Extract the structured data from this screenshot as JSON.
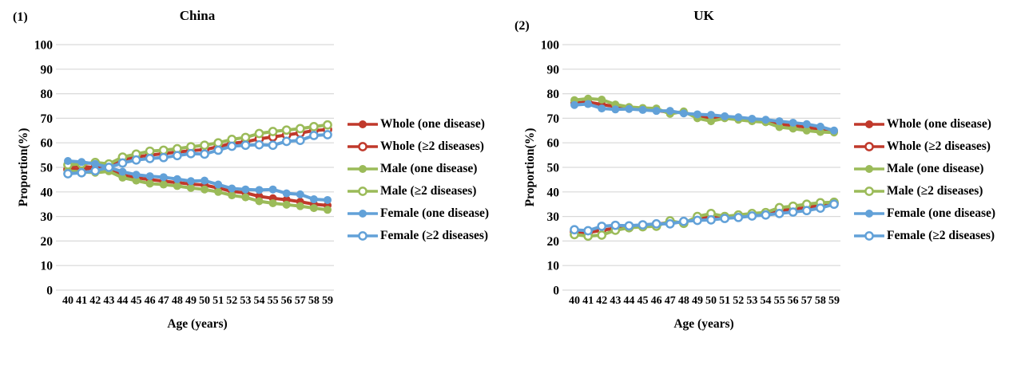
{
  "page": {
    "background": "#ffffff",
    "grid_color": "#d9d9d9",
    "text_color": "#000000"
  },
  "panels": [
    {
      "number": "(1)",
      "title": "China",
      "y_axis_title": "Proportion(%)",
      "x_axis_title": "Age (years)"
    },
    {
      "number": "(2)",
      "title": "UK",
      "y_axis_title": "Proportion(%)",
      "x_axis_title": "Age (years)"
    }
  ],
  "legend": {
    "entries": [
      {
        "label": "Whole (one disease)",
        "color": "#C0392B",
        "marker": "filled"
      },
      {
        "label": "Whole (≥2 diseases)",
        "color": "#C0392B",
        "marker": "open"
      },
      {
        "label": "Male (one disease)",
        "color": "#9BBB59",
        "marker": "filled"
      },
      {
        "label": "Male (≥2 diseases)",
        "color": "#9BBB59",
        "marker": "open"
      },
      {
        "label": "Female (one disease)",
        "color": "#62A1D8",
        "marker": "filled"
      },
      {
        "label": "Female (≥2 diseases)",
        "color": "#62A1D8",
        "marker": "open"
      }
    ]
  },
  "chart_data": [
    {
      "type": "line",
      "panel_label": "(1)",
      "title": "China",
      "xlabel": "Age (years)",
      "ylabel": "Proportion(%)",
      "x": [
        40,
        41,
        42,
        43,
        44,
        45,
        46,
        47,
        48,
        49,
        50,
        51,
        52,
        53,
        54,
        55,
        56,
        57,
        58,
        59
      ],
      "ylim": [
        0,
        100
      ],
      "ytick_step": 10,
      "grid": true,
      "legend_position": "right",
      "series": [
        {
          "name": "Whole (one disease)",
          "color": "#C0392B",
          "marker": "filled",
          "values": [
            50.3,
            50.4,
            49.9,
            49.2,
            46.8,
            45.8,
            45.0,
            44.4,
            43.8,
            43.2,
            42.8,
            41.6,
            40.2,
            39.6,
            38.2,
            37.4,
            36.8,
            36.0,
            35.0,
            34.5
          ]
        },
        {
          "name": "Whole (≥2 diseases)",
          "color": "#C0392B",
          "marker": "open",
          "values": [
            49.2,
            49.0,
            50.0,
            50.8,
            53.2,
            54.2,
            55.0,
            55.6,
            56.2,
            56.8,
            57.2,
            58.4,
            59.8,
            60.4,
            61.6,
            62.4,
            63.2,
            64.0,
            65.0,
            65.4
          ]
        },
        {
          "name": "Male (one disease)",
          "color": "#9BBB59",
          "marker": "filled",
          "values": [
            48.5,
            48.2,
            47.8,
            48.4,
            45.8,
            44.6,
            43.4,
            43.0,
            42.4,
            41.6,
            41.0,
            40.0,
            38.6,
            37.8,
            36.2,
            35.4,
            34.8,
            34.2,
            33.4,
            32.7
          ]
        },
        {
          "name": "Male (≥2 diseases)",
          "color": "#9BBB59",
          "marker": "open",
          "values": [
            51.0,
            51.4,
            52.0,
            51.4,
            54.2,
            55.4,
            56.6,
            57.0,
            57.6,
            58.4,
            59.0,
            60.0,
            61.4,
            62.2,
            63.8,
            64.6,
            65.2,
            65.8,
            66.6,
            67.3
          ]
        },
        {
          "name": "Female (one disease)",
          "color": "#62A1D8",
          "marker": "filled",
          "values": [
            52.6,
            52.2,
            51.4,
            50.0,
            48.2,
            47.0,
            46.4,
            46.0,
            45.2,
            44.4,
            44.6,
            43.0,
            41.4,
            41.0,
            40.8,
            41.0,
            39.4,
            39.0,
            37.0,
            36.7
          ]
        },
        {
          "name": "Female (≥2 diseases)",
          "color": "#62A1D8",
          "marker": "open",
          "values": [
            47.4,
            47.8,
            48.6,
            50.0,
            51.8,
            53.0,
            53.6,
            54.0,
            54.8,
            55.6,
            55.4,
            57.0,
            58.6,
            59.0,
            59.2,
            59.0,
            60.6,
            61.0,
            63.0,
            63.3
          ]
        }
      ]
    },
    {
      "type": "line",
      "panel_label": "(2)",
      "title": "UK",
      "xlabel": "Age (years)",
      "ylabel": "Proportion(%)",
      "x": [
        40,
        41,
        42,
        43,
        44,
        45,
        46,
        47,
        48,
        49,
        50,
        51,
        52,
        53,
        54,
        55,
        56,
        57,
        58,
        59
      ],
      "ylim": [
        0,
        100
      ],
      "ytick_step": 10,
      "grid": true,
      "legend_position": "right",
      "series": [
        {
          "name": "Whole (one disease)",
          "color": "#C0392B",
          "marker": "filled",
          "values": [
            76.2,
            76.6,
            75.6,
            74.8,
            74.2,
            73.8,
            73.2,
            72.4,
            72.4,
            70.8,
            70.2,
            70.4,
            70.0,
            69.4,
            69.0,
            67.6,
            67.0,
            66.4,
            65.4,
            64.6
          ]
        },
        {
          "name": "Whole (≥2 diseases)",
          "color": "#C0392B",
          "marker": "open",
          "values": [
            23.8,
            23.4,
            24.4,
            25.2,
            25.8,
            26.2,
            26.8,
            27.6,
            27.6,
            29.2,
            29.8,
            29.6,
            30.0,
            30.6,
            31.0,
            32.4,
            33.0,
            33.6,
            34.6,
            35.4
          ]
        },
        {
          "name": "Male (one disease)",
          "color": "#9BBB59",
          "marker": "filled",
          "values": [
            77.4,
            78.0,
            77.6,
            75.6,
            74.6,
            74.2,
            74.0,
            71.8,
            72.8,
            70.0,
            68.8,
            70.0,
            69.4,
            68.8,
            68.4,
            66.4,
            65.8,
            65.0,
            64.4,
            64.2
          ]
        },
        {
          "name": "Male (≥2 diseases)",
          "color": "#9BBB59",
          "marker": "open",
          "values": [
            22.6,
            22.0,
            22.4,
            24.4,
            25.4,
            25.8,
            26.0,
            28.2,
            27.2,
            30.0,
            31.2,
            30.0,
            30.6,
            31.2,
            31.6,
            33.6,
            34.2,
            35.0,
            35.6,
            35.8
          ]
        },
        {
          "name": "Female (one disease)",
          "color": "#62A1D8",
          "marker": "filled",
          "values": [
            75.4,
            75.8,
            74.0,
            73.6,
            73.8,
            73.4,
            73.0,
            73.0,
            72.0,
            71.6,
            71.4,
            70.8,
            70.4,
            69.8,
            69.4,
            68.8,
            68.2,
            67.6,
            66.6,
            65.0
          ]
        },
        {
          "name": "Female (≥2 diseases)",
          "color": "#62A1D8",
          "marker": "open",
          "values": [
            24.6,
            24.2,
            26.0,
            26.4,
            26.2,
            26.6,
            27.0,
            27.0,
            28.0,
            28.4,
            28.6,
            29.2,
            29.6,
            30.2,
            30.6,
            31.2,
            31.8,
            32.4,
            33.4,
            35.0
          ]
        }
      ]
    }
  ]
}
